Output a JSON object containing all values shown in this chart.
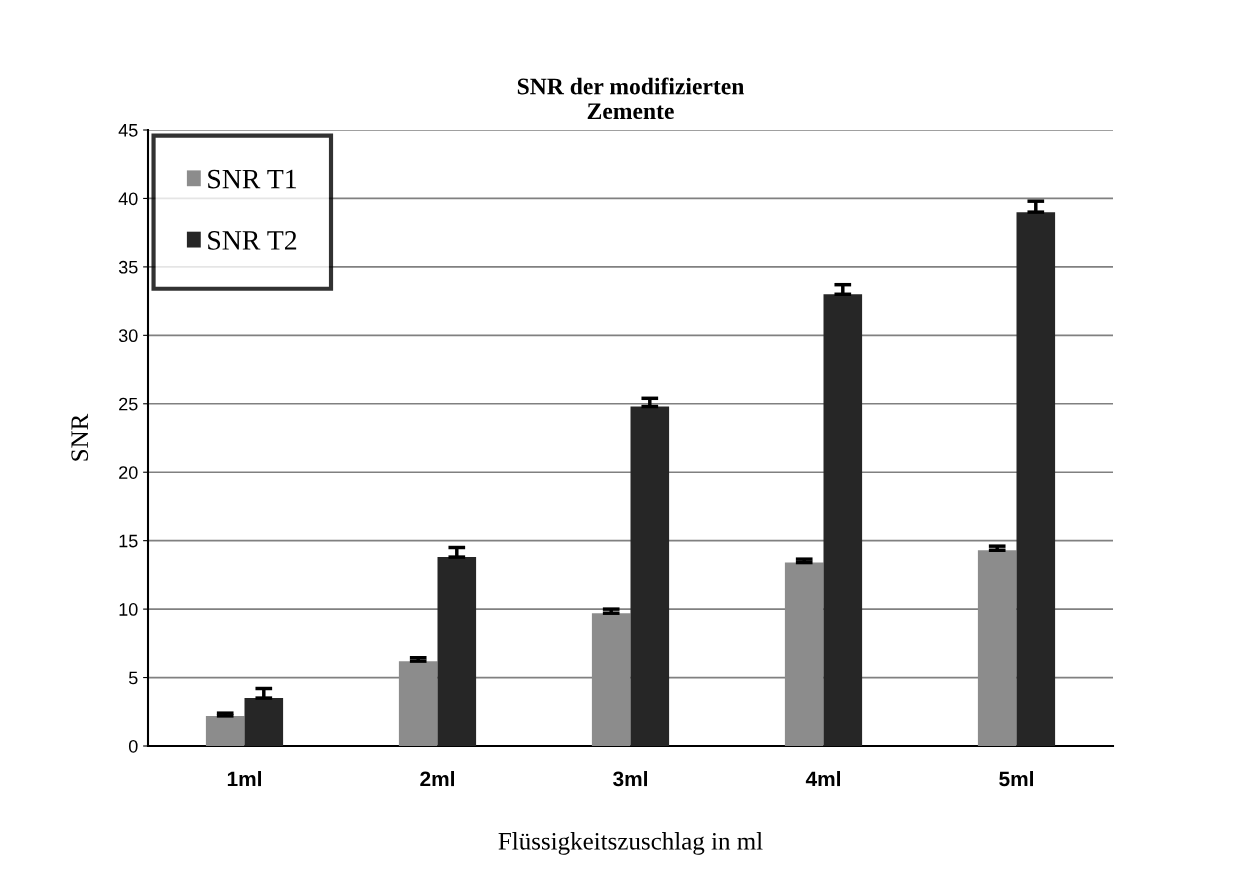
{
  "chart_data": {
    "type": "bar",
    "title": "SNR der modifizierten\nZemente",
    "xlabel": "Flüssigkeitszuschlag in ml",
    "ylabel": "SNR",
    "categories": [
      "1ml",
      "2ml",
      "3ml",
      "4ml",
      "5ml"
    ],
    "series": [
      {
        "name": "SNR T1",
        "color": "#8c8c8c",
        "values": [
          2.2,
          6.2,
          9.7,
          13.4,
          14.3
        ],
        "errors": [
          [
            2.2,
            2.4
          ],
          [
            6.2,
            6.45
          ],
          [
            9.7,
            10.0
          ],
          [
            13.4,
            13.65
          ],
          [
            14.3,
            14.6
          ]
        ]
      },
      {
        "name": "SNR T2",
        "color": "#262626",
        "values": [
          3.5,
          13.8,
          24.8,
          33.0,
          39.0
        ],
        "errors": [
          [
            3.5,
            4.2
          ],
          [
            13.8,
            14.5
          ],
          [
            24.8,
            25.4
          ],
          [
            33.0,
            33.7
          ],
          [
            39.0,
            39.8
          ]
        ]
      }
    ],
    "ylim": [
      0,
      45
    ],
    "yticks": [
      0,
      5,
      10,
      15,
      20,
      25,
      30,
      35,
      40,
      45
    ],
    "grid": "y",
    "legend": "top left"
  }
}
